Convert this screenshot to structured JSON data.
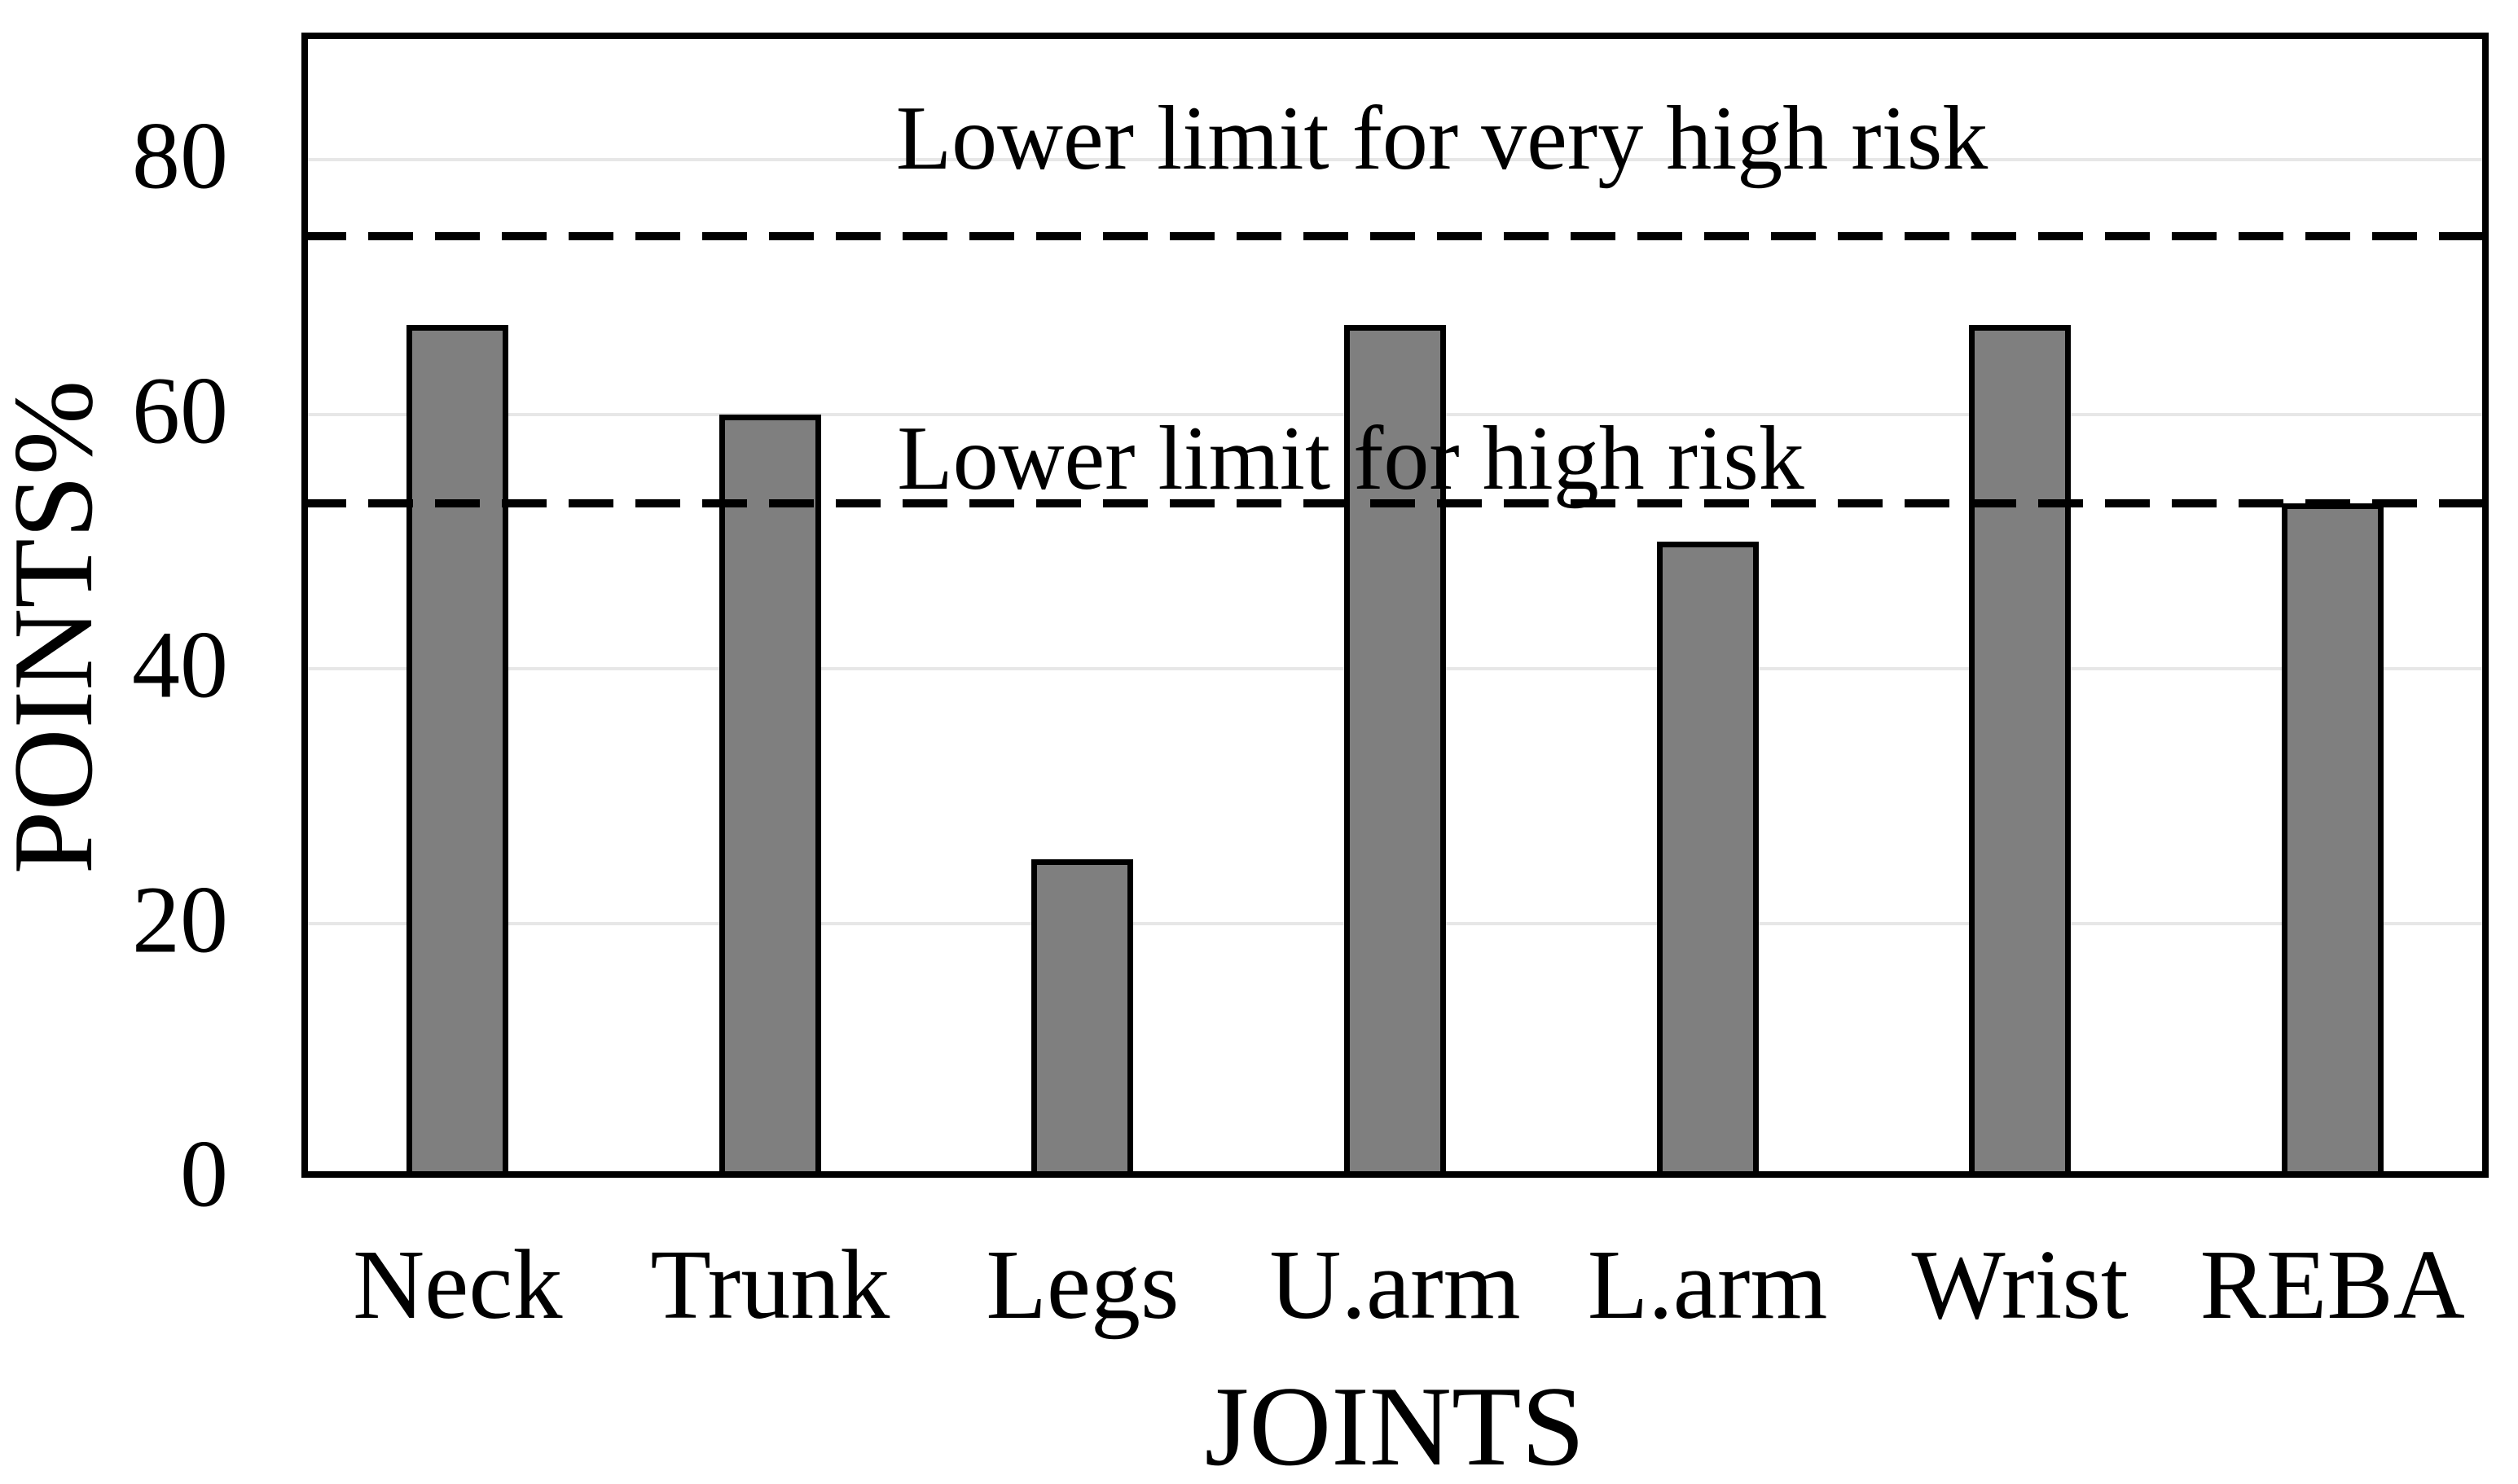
{
  "chart_data": {
    "type": "bar",
    "title": "",
    "xlabel": "JOINTS",
    "ylabel": "POINTS%",
    "categories": [
      "Neck",
      "Trunk",
      "Legs",
      "U.arm",
      "L.arm",
      "Wrist",
      "REBA"
    ],
    "values": [
      67,
      60,
      25,
      67,
      50,
      67,
      53
    ],
    "ylim": [
      0,
      90
    ],
    "yticks": [
      0,
      20,
      40,
      60,
      80
    ],
    "grid": "horizontal",
    "legend": "none",
    "colors": {
      "bar_fill": "#7f7f7f",
      "bar_border": "#000000",
      "gridline": "#e7e7e7",
      "frame": "#000000",
      "threshold_line": "#000000"
    },
    "annotations": [
      {
        "label": "Lower limit for very high risk",
        "value": 74,
        "style": "dashed-horizontal-line"
      },
      {
        "label": "Lower limit for high risk",
        "value": 53,
        "style": "dashed-horizontal-line"
      }
    ]
  }
}
